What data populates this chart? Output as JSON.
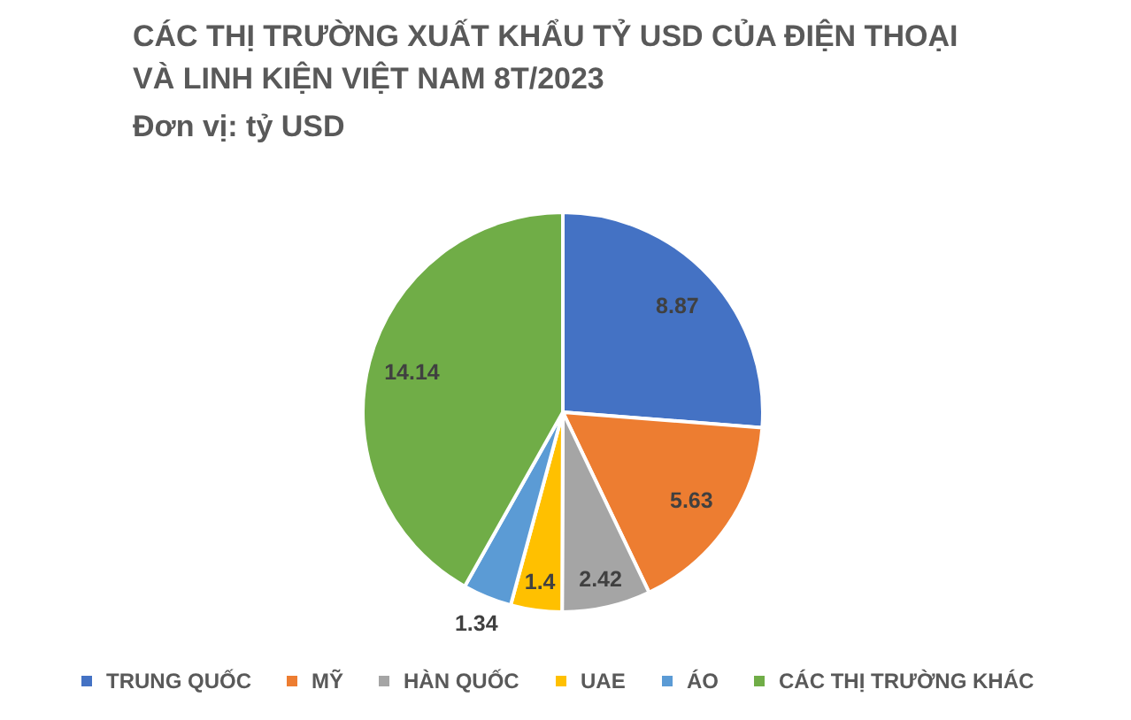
{
  "chart_data": {
    "type": "pie",
    "title": "CÁC THỊ TRƯỜNG XUẤT KHẨU TỶ USD CỦA ĐIỆN THOẠI VÀ LINH KIỆN VIỆT NAM 8T/2023",
    "subtitle": "Đơn vị: tỷ USD",
    "categories": [
      "TRUNG QUỐC",
      "MỸ",
      "HÀN QUỐC",
      "UAE",
      "ÁO",
      "CÁC THỊ TRƯỜNG KHÁC"
    ],
    "values": [
      8.87,
      5.63,
      2.42,
      1.4,
      1.34,
      14.14
    ],
    "colors": [
      "#4472c4",
      "#ed7d31",
      "#a5a5a5",
      "#ffc000",
      "#5b9bd5",
      "#70ad47"
    ],
    "data_labels": true,
    "legend": "bottom"
  }
}
